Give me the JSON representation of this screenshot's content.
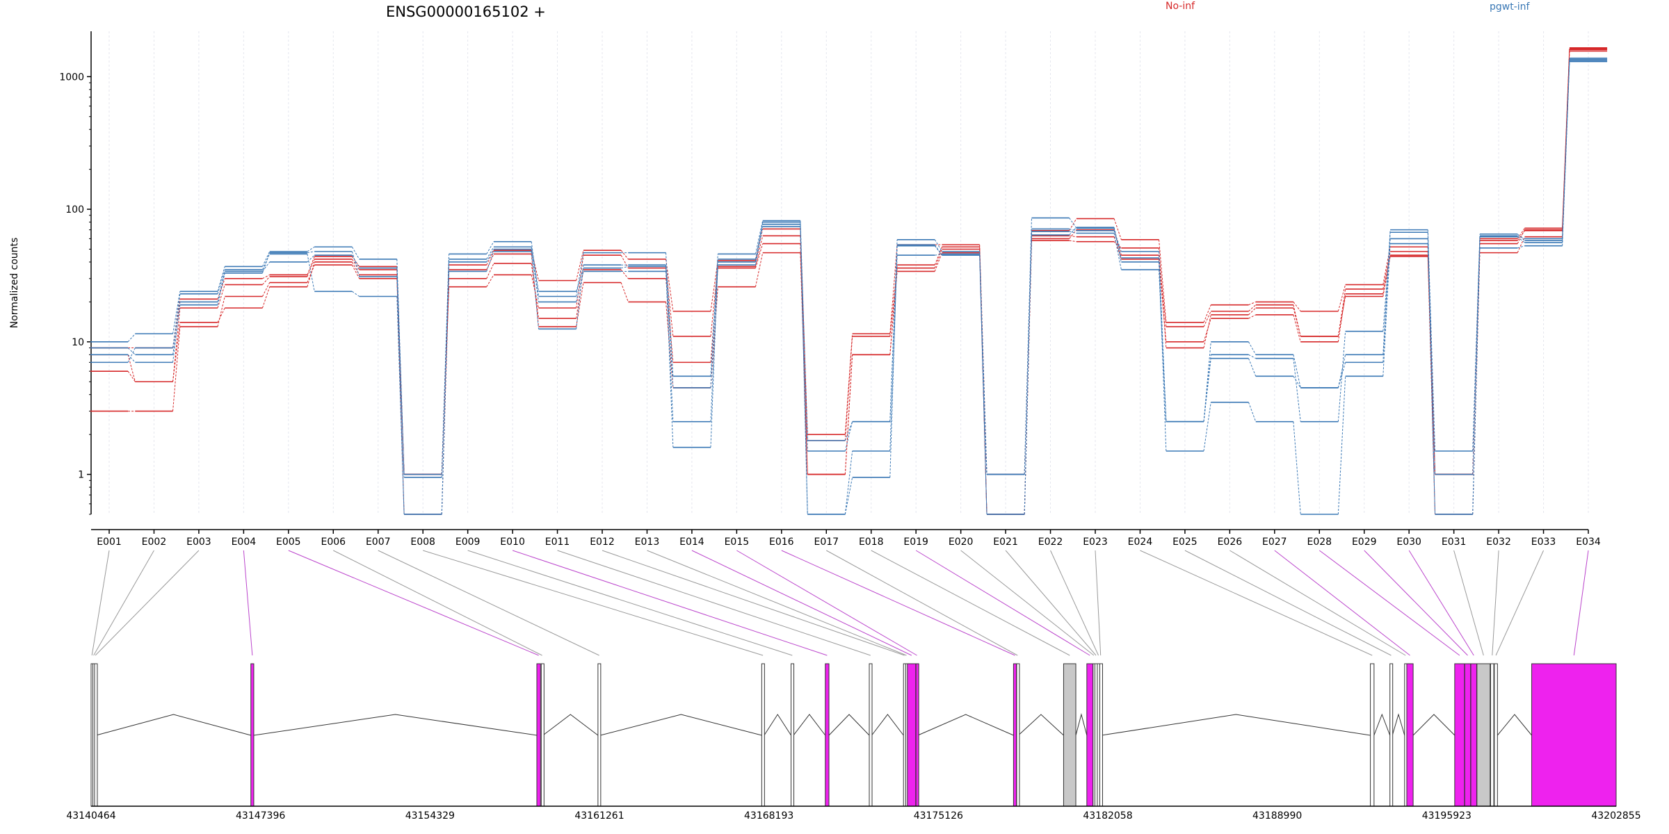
{
  "chart_data": {
    "type": "line",
    "title": "ENSG00000165102 +",
    "ylabel": "Normalized counts",
    "yscale": "log",
    "ylim": [
      0.5,
      2200
    ],
    "yticks": [
      "1",
      "10",
      "100",
      "1000"
    ],
    "legend": {
      "placement": "top-right",
      "entries": [
        "No-inf",
        "pgwt-inf"
      ]
    },
    "colors": {
      "No-inf": "#d62728",
      "pgwt-inf": "#3a78b5",
      "exon_diff": "#ee22ee",
      "exon_other": "#c8c8c8"
    },
    "categories": [
      "E001",
      "E002",
      "E003",
      "E004",
      "E005",
      "E006",
      "E007",
      "E008",
      "E009",
      "E010",
      "E011",
      "E012",
      "E013",
      "E014",
      "E015",
      "E016",
      "E017",
      "E018",
      "E019",
      "E020",
      "E021",
      "E022",
      "E023",
      "E024",
      "E025",
      "E026",
      "E027",
      "E028",
      "E029",
      "E030",
      "E031",
      "E032",
      "E033",
      "E034"
    ],
    "series": [
      {
        "name": "No-inf",
        "values": [
          9,
          9,
          21,
          30,
          32,
          44,
          37,
          1,
          38,
          49,
          29,
          49,
          42,
          17,
          41,
          71,
          2,
          11.5,
          54,
          54,
          1,
          69,
          85,
          59,
          14,
          19,
          20,
          17,
          27,
          52,
          1,
          60,
          72,
          1650
        ]
      },
      {
        "name": "No-inf",
        "values": [
          6,
          5,
          14,
          18,
          26,
          40,
          32,
          1,
          26,
          32,
          18,
          45,
          36,
          11,
          37,
          63,
          1.8,
          11,
          36,
          50,
          0.5,
          60,
          70,
          45,
          13,
          17,
          19,
          11,
          25,
          48,
          1,
          55,
          70,
          1600
        ]
      },
      {
        "name": "No-inf",
        "values": [
          3,
          3,
          13,
          22,
          28,
          38,
          30,
          0.5,
          30,
          39,
          15,
          35,
          30,
          7,
          36,
          55,
          1,
          8,
          34,
          47,
          0.5,
          63,
          62,
          42,
          10,
          15,
          16,
          10,
          23,
          45,
          0.5,
          47,
          62,
          1560
        ]
      },
      {
        "name": "No-inf",
        "values": [
          8,
          5,
          18,
          27,
          31,
          42,
          35,
          1,
          35,
          46,
          13,
          28,
          20,
          4.5,
          26,
          47,
          1,
          8,
          38,
          52,
          0.5,
          58,
          57,
          51,
          9,
          16,
          18,
          11,
          22,
          44,
          1,
          58,
          69,
          1620
        ]
      },
      {
        "name": "pgwt-inf",
        "values": [
          10,
          11.5,
          24,
          37,
          48,
          52,
          42,
          1,
          46,
          57,
          22,
          47,
          47,
          5.5,
          46,
          82,
          1.8,
          2.5,
          59,
          48,
          1,
          86,
          72,
          40,
          2.5,
          10,
          8,
          4.5,
          8,
          70,
          1.5,
          63,
          60,
          1350
        ]
      },
      {
        "name": "pgwt-inf",
        "values": [
          8,
          7,
          20,
          34,
          40,
          45,
          36,
          0.95,
          42,
          52,
          24,
          36,
          37,
          4.5,
          42,
          77,
          1.5,
          2.5,
          54,
          45,
          1,
          68,
          66,
          35,
          2.5,
          8,
          7.5,
          2.5,
          12,
          60,
          1,
          65,
          58,
          1320
        ]
      },
      {
        "name": "pgwt-inf",
        "values": [
          7,
          9,
          23,
          35,
          46,
          24,
          22,
          0.5,
          40,
          50,
          20,
          34,
          34,
          2.5,
          38,
          74,
          0.5,
          1.5,
          45,
          46,
          0.5,
          64,
          73,
          43,
          1.5,
          3.5,
          2.5,
          0.5,
          5.5,
          55,
          0.5,
          51,
          53,
          1300
        ]
      },
      {
        "name": "pgwt-inf",
        "values": [
          9,
          8,
          19,
          33,
          47,
          48,
          31,
          0.5,
          34,
          48,
          12.5,
          38,
          38,
          1.6,
          40,
          80,
          0.5,
          0.95,
          53,
          45,
          0.5,
          71,
          69,
          48,
          2.5,
          7.5,
          5.5,
          4.5,
          7,
          67,
          0.5,
          62,
          56,
          1380
        ]
      }
    ],
    "genome_axis": {
      "range": [
        43140464,
        43202855
      ],
      "ticks": [
        "43140464",
        "43147396",
        "43154329",
        "43161261",
        "43168193",
        "43175126",
        "43182058",
        "43188990",
        "43195923",
        "43202855"
      ]
    },
    "exons": [
      {
        "id": "E001",
        "start": 43140464,
        "end": 43140530,
        "type": "other"
      },
      {
        "id": "E002",
        "start": 43140535,
        "end": 43140600,
        "type": "other"
      },
      {
        "id": "E003",
        "start": 43140605,
        "end": 43140670,
        "type": "other"
      },
      {
        "id": "E004",
        "start": 43147000,
        "end": 43147120,
        "type": "diff"
      },
      {
        "id": "E005",
        "start": 43158700,
        "end": 43158850,
        "type": "diff"
      },
      {
        "id": "E006",
        "start": 43158880,
        "end": 43158950,
        "type": "other"
      },
      {
        "id": "E007",
        "start": 43161200,
        "end": 43161300,
        "type": "other"
      },
      {
        "id": "E008",
        "start": 43167900,
        "end": 43168000,
        "type": "other"
      },
      {
        "id": "E009",
        "start": 43169100,
        "end": 43169200,
        "type": "other"
      },
      {
        "id": "E010",
        "start": 43170500,
        "end": 43170650,
        "type": "diff"
      },
      {
        "id": "E011",
        "start": 43172300,
        "end": 43172400,
        "type": "other"
      },
      {
        "id": "E012",
        "start": 43173700,
        "end": 43173780,
        "type": "other"
      },
      {
        "id": "E013",
        "start": 43173790,
        "end": 43173850,
        "type": "other"
      },
      {
        "id": "E014",
        "start": 43173860,
        "end": 43174200,
        "type": "diff"
      },
      {
        "id": "E015",
        "start": 43174210,
        "end": 43174290,
        "type": "diff"
      },
      {
        "id": "E016",
        "start": 43178200,
        "end": 43178320,
        "type": "diff"
      },
      {
        "id": "E017",
        "start": 43178330,
        "end": 43178400,
        "type": "other"
      },
      {
        "id": "E018",
        "start": 43180250,
        "end": 43180750,
        "type": "other"
      },
      {
        "id": "E019",
        "start": 43181200,
        "end": 43181450,
        "type": "diff"
      },
      {
        "id": "E020",
        "start": 43181455,
        "end": 43181520,
        "type": "other"
      },
      {
        "id": "E021",
        "start": 43181530,
        "end": 43181620,
        "type": "other"
      },
      {
        "id": "E022",
        "start": 43181630,
        "end": 43181720,
        "type": "other"
      },
      {
        "id": "E023",
        "start": 43181730,
        "end": 43181800,
        "type": "other"
      },
      {
        "id": "E024",
        "start": 43192800,
        "end": 43192950,
        "type": "other"
      },
      {
        "id": "E025",
        "start": 43193600,
        "end": 43193700,
        "type": "other"
      },
      {
        "id": "E026",
        "start": 43194200,
        "end": 43194280,
        "type": "other"
      },
      {
        "id": "E027",
        "start": 43194290,
        "end": 43194550,
        "type": "diff"
      },
      {
        "id": "E028",
        "start": 43196250,
        "end": 43196650,
        "type": "diff"
      },
      {
        "id": "E029",
        "start": 43196660,
        "end": 43196900,
        "type": "diff"
      },
      {
        "id": "E030",
        "start": 43196910,
        "end": 43197150,
        "type": "diff"
      },
      {
        "id": "E031",
        "start": 43197160,
        "end": 43197700,
        "type": "other"
      },
      {
        "id": "E032",
        "start": 43197720,
        "end": 43197850,
        "type": "other"
      },
      {
        "id": "E033",
        "start": 43197870,
        "end": 43198000,
        "type": "other"
      },
      {
        "id": "E034",
        "start": 43199400,
        "end": 43202855,
        "type": "diff"
      }
    ]
  }
}
